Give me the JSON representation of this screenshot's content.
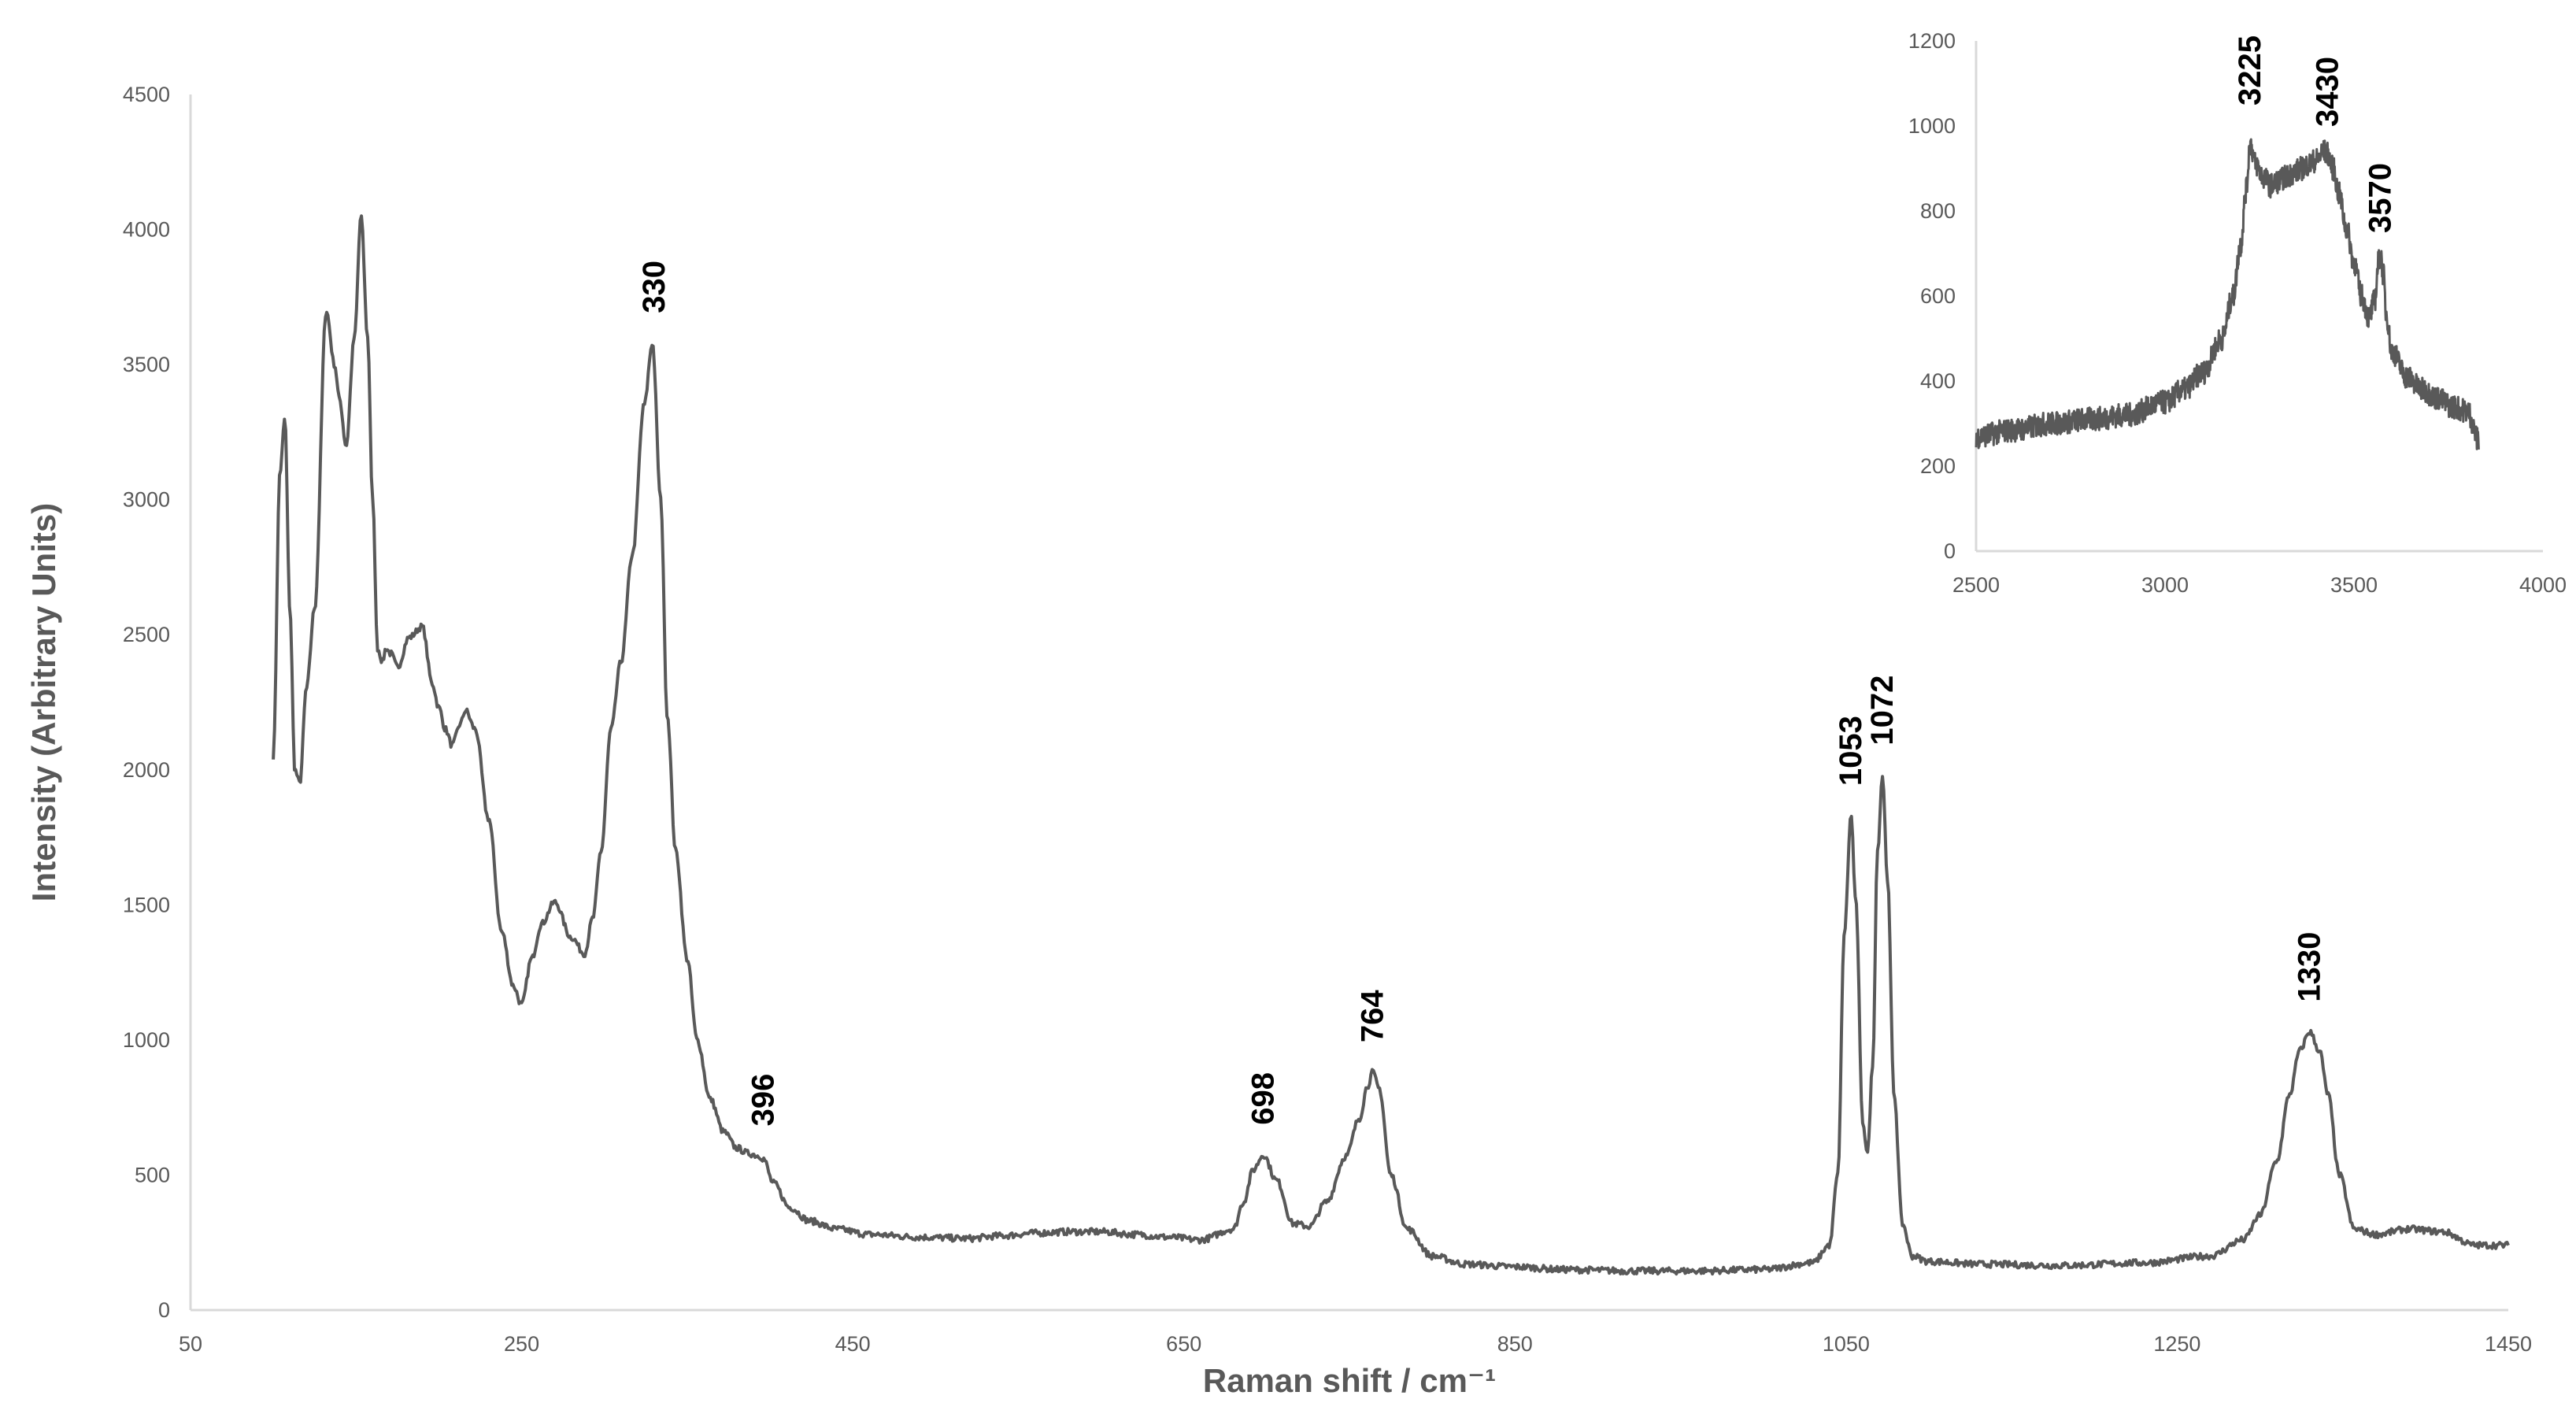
{
  "chart_data": [
    {
      "type": "line",
      "xlabel": "Raman shift / cm⁻¹",
      "ylabel": "Intensity (Arbitrary Units)",
      "xlim": [
        50,
        1450
      ],
      "ylim": [
        0,
        4500
      ],
      "xticks": [
        50,
        250,
        450,
        650,
        850,
        1050,
        1250,
        1450
      ],
      "yticks": [
        0,
        500,
        1000,
        1500,
        2000,
        2500,
        3000,
        3500,
        4000,
        4500
      ],
      "grid": false,
      "series": [
        {
          "color": "#595959",
          "x": [
            100,
            104,
            107,
            110,
            113,
            116,
            120,
            125,
            132,
            137,
            140,
            144,
            149,
            153,
            157,
            160,
            163,
            166,
            168,
            171,
            175,
            182,
            190,
            196,
            200,
            204,
            208,
            213,
            216,
            222,
            230,
            238,
            245,
            250,
            256,
            262,
            270,
            280,
            288,
            293,
            298,
            304,
            310,
            317,
            324,
            329,
            334,
            338,
            343,
            350,
            356,
            364,
            372,
            380,
            387,
            394,
            396,
            402,
            412,
            424,
            440,
            460,
            490,
            520,
            540,
            560,
            580,
            600,
            620,
            640,
            660,
            680,
            686,
            692,
            698,
            706,
            716,
            726,
            736,
            748,
            756,
            761,
            764,
            768,
            775,
            785,
            800,
            820,
            850,
            880,
            920,
            960,
            1000,
            1030,
            1040,
            1045,
            1049,
            1053,
            1056,
            1060,
            1063,
            1066,
            1069,
            1072,
            1075,
            1079,
            1084,
            1090,
            1100,
            1130,
            1180,
            1230,
            1270,
            1290,
            1300,
            1310,
            1318,
            1324,
            1330,
            1336,
            1341,
            1348,
            1357,
            1370,
            1390,
            1410,
            1430,
            1450
          ],
          "y": [
            2050,
            3100,
            3300,
            2600,
            2000,
            1950,
            2300,
            2600,
            3700,
            3500,
            3370,
            3200,
            3600,
            4050,
            3600,
            3000,
            2450,
            2400,
            2450,
            2430,
            2380,
            2490,
            2530,
            2320,
            2230,
            2150,
            2090,
            2170,
            2220,
            2150,
            1820,
            1400,
            1200,
            1130,
            1300,
            1430,
            1510,
            1380,
            1320,
            1450,
            1700,
            2150,
            2400,
            2800,
            3350,
            3580,
            3000,
            2200,
            1700,
            1300,
            1000,
            780,
            660,
            600,
            580,
            570,
            560,
            470,
            380,
            330,
            300,
            280,
            270,
            265,
            275,
            285,
            290,
            290,
            280,
            270,
            260,
            300,
            400,
            520,
            575,
            480,
            320,
            310,
            400,
            570,
            710,
            830,
            880,
            820,
            500,
            300,
            200,
            170,
            160,
            150,
            145,
            145,
            150,
            175,
            240,
            500,
            1400,
            1830,
            1500,
            700,
            580,
            900,
            1700,
            1980,
            1600,
            800,
            320,
            200,
            180,
            170,
            165,
            175,
            200,
            260,
            350,
            550,
            800,
            960,
            1030,
            960,
            800,
            500,
            300,
            280,
            300,
            290,
            240,
            240
          ],
          "noise_amplitude": 12
        }
      ],
      "annotations": [
        {
          "x": 330,
          "y": 3580,
          "text": "330"
        },
        {
          "x": 396,
          "y": 570,
          "text": "396"
        },
        {
          "x": 698,
          "y": 575,
          "text": "698"
        },
        {
          "x": 764,
          "y": 880,
          "text": "764"
        },
        {
          "x": 1053,
          "y": 1830,
          "text": "1053"
        },
        {
          "x": 1072,
          "y": 1980,
          "text": "1072"
        },
        {
          "x": 1330,
          "y": 1030,
          "text": "1330"
        }
      ]
    },
    {
      "type": "line",
      "role": "inset",
      "xlim": [
        2500,
        4000
      ],
      "ylim": [
        0,
        1200
      ],
      "xticks": [
        2500,
        3000,
        3500,
        4000
      ],
      "yticks": [
        0,
        200,
        400,
        600,
        800,
        1000,
        1200
      ],
      "grid": false,
      "series": [
        {
          "color": "#595959",
          "x": [
            2500,
            2600,
            2700,
            2800,
            2900,
            3000,
            3050,
            3100,
            3150,
            3180,
            3200,
            3215,
            3225,
            3240,
            3260,
            3280,
            3300,
            3320,
            3340,
            3360,
            3380,
            3400,
            3420,
            3430,
            3445,
            3460,
            3480,
            3500,
            3520,
            3540,
            3555,
            3565,
            3570,
            3578,
            3585,
            3600,
            3640,
            3680,
            3720,
            3760,
            3800,
            3830
          ],
          "y": [
            270,
            285,
            300,
            310,
            320,
            350,
            380,
            420,
            500,
            600,
            720,
            850,
            960,
            910,
            880,
            860,
            870,
            880,
            890,
            900,
            910,
            920,
            940,
            935,
            900,
            840,
            760,
            680,
            600,
            550,
            590,
            680,
            700,
            650,
            560,
            470,
            410,
            380,
            360,
            340,
            330,
            260
          ],
          "noise_amplitude": 28
        }
      ],
      "annotations": [
        {
          "x": 3225,
          "y": 1000,
          "text": "3225"
        },
        {
          "x": 3430,
          "y": 950,
          "text": "3430"
        },
        {
          "x": 3570,
          "y": 700,
          "text": "3570"
        }
      ]
    }
  ]
}
